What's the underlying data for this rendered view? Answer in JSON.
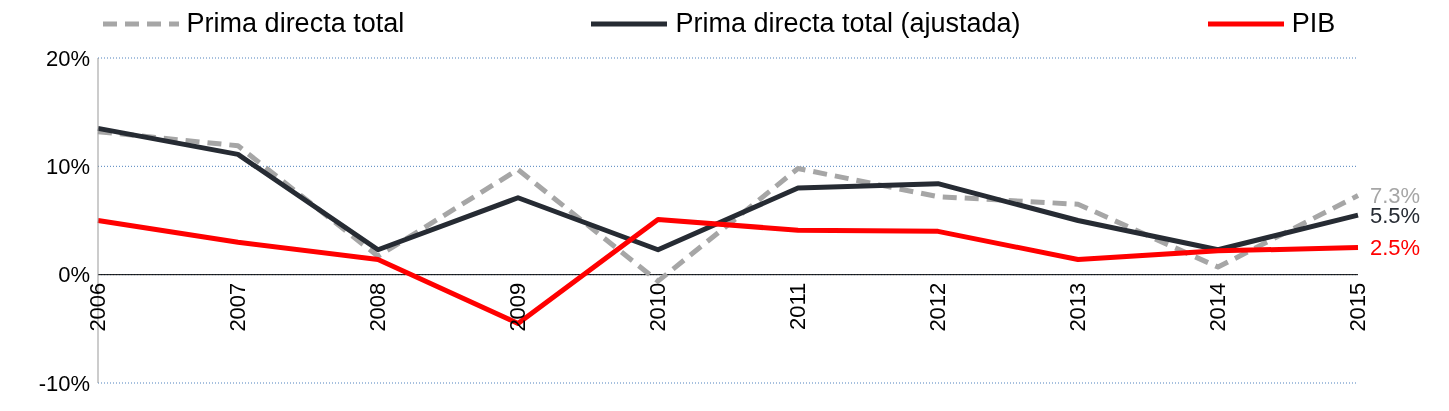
{
  "chart_data": {
    "type": "line",
    "categories": [
      "2006",
      "2007",
      "2008",
      "2009",
      "2010",
      "2011",
      "2012",
      "2013",
      "2014",
      "2015"
    ],
    "series": [
      {
        "name": "Prima directa total",
        "color": "#a6a6a6",
        "line_style": "dashed",
        "values": [
          13.2,
          11.9,
          1.7,
          9.7,
          -0.6,
          9.8,
          7.2,
          6.5,
          0.7,
          7.3
        ],
        "value_labels": [
          null,
          null,
          null,
          null,
          null,
          null,
          null,
          null,
          null,
          "7.3%"
        ]
      },
      {
        "name": "Prima directa total (ajustada)",
        "color": "#262b33",
        "line_style": "solid",
        "values": [
          13.5,
          11.1,
          2.3,
          7.1,
          2.3,
          8.0,
          8.4,
          5.0,
          2.3,
          5.5
        ],
        "value_labels": [
          null,
          null,
          null,
          null,
          null,
          null,
          null,
          null,
          null,
          "5.5%"
        ]
      },
      {
        "name": "PIB",
        "color": "#ff0000",
        "line_style": "solid",
        "values": [
          5.0,
          3.0,
          1.4,
          -4.5,
          5.1,
          4.1,
          4.0,
          1.4,
          2.2,
          2.5
        ],
        "value_labels": [
          null,
          null,
          null,
          null,
          null,
          null,
          null,
          null,
          null,
          "2.5%"
        ]
      }
    ],
    "ylim": [
      -10,
      20
    ],
    "yticks": [
      {
        "value": -10,
        "label": "-10%"
      },
      {
        "value": 0,
        "label": "0%"
      },
      {
        "value": 10,
        "label": "10%"
      },
      {
        "value": 20,
        "label": "20%"
      }
    ],
    "grid": "y",
    "legend": "top",
    "marker": "none"
  }
}
